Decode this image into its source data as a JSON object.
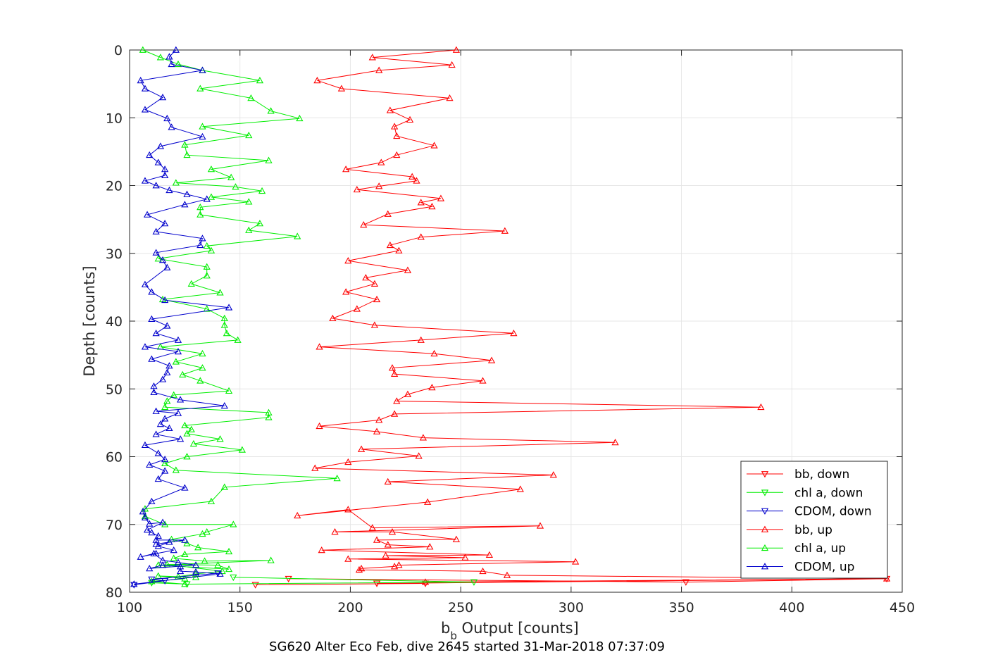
{
  "chart_data": {
    "type": "line",
    "xlabel_main": "b",
    "xlabel_sub": "b",
    "xlabel_rest": " Output [counts]",
    "ylabel": "Depth [counts]",
    "caption": "SG620 Alter Eco Feb, dive 2645 started 31-Mar-2018 07:37:09",
    "xlim": [
      100,
      450
    ],
    "ylim": [
      0,
      80
    ],
    "y_reversed": true,
    "grid": true,
    "legend_position": "bottom-right",
    "xticks": [
      "100",
      "150",
      "200",
      "250",
      "300",
      "350",
      "400",
      "450"
    ],
    "yticks": [
      "0",
      "10",
      "20",
      "30",
      "40",
      "50",
      "60",
      "70",
      "80"
    ],
    "series": [
      {
        "name": "bb, down",
        "color": "#ff0000",
        "marker": "triangle-down",
        "x": [
          172,
          352,
          443,
          212,
          234,
          157
        ],
        "y": [
          78,
          78.5,
          78,
          78.7,
          78.7,
          78.9
        ]
      },
      {
        "name": "chl a, down",
        "color": "#00ee00",
        "marker": "triangle-down",
        "x": [
          147,
          256,
          126,
          110
        ],
        "y": [
          77.8,
          78.5,
          78.8,
          78.6
        ]
      },
      {
        "name": "CDOM, down",
        "color": "#0000cc",
        "marker": "triangle-down",
        "x": [
          140,
          110,
          116,
          102
        ],
        "y": [
          77.2,
          78.1,
          78.3,
          78.9
        ]
      },
      {
        "name": "bb, up",
        "color": "#ff0000",
        "marker": "triangle-up",
        "x": [
          248,
          210,
          246,
          213,
          185,
          196,
          245,
          218,
          227,
          220,
          221,
          238,
          221,
          214,
          198,
          228,
          230,
          213,
          203,
          241,
          232,
          237,
          217,
          206,
          270,
          232,
          218,
          222,
          199,
          226,
          207,
          211,
          198,
          212,
          203,
          192,
          211,
          274,
          232,
          186,
          238,
          264,
          219,
          220,
          260,
          237,
          226,
          221,
          386,
          220,
          213,
          186,
          212,
          233,
          320,
          205,
          231,
          199,
          184,
          292,
          217,
          277,
          235,
          176,
          199,
          210,
          286,
          193,
          219,
          248,
          212,
          217,
          236,
          187,
          263,
          216,
          252,
          199,
          302,
          222,
          220,
          205,
          204,
          260,
          271,
          443,
          234
        ],
        "y": [
          0,
          1.1,
          2.2,
          3,
          4.5,
          5.7,
          7.1,
          8.9,
          10.3,
          11.3,
          12.7,
          14.1,
          15.5,
          16.6,
          17.6,
          18.7,
          19.3,
          20.1,
          20.6,
          21.9,
          22.5,
          23.1,
          24.2,
          25.8,
          26.7,
          27.6,
          28.8,
          29.6,
          31.1,
          32.5,
          33.6,
          34.5,
          35.7,
          36.8,
          38.2,
          39.6,
          40.6,
          41.8,
          42.8,
          43.8,
          44.8,
          45.8,
          46.9,
          47.8,
          48.8,
          49.8,
          50.8,
          51.8,
          52.7,
          53.7,
          54.6,
          55.5,
          56.3,
          57.2,
          57.9,
          58.9,
          59.9,
          60.8,
          61.7,
          62.7,
          63.7,
          64.8,
          66.7,
          68.7,
          67.8,
          70.5,
          70.2,
          71.1,
          71.1,
          72.2,
          72.3,
          73.0,
          73.3,
          73.8,
          74.5,
          74.6,
          74.9,
          75.1,
          75.5,
          76.0,
          76.2,
          76.5,
          76.7,
          76.9,
          77.5,
          78.0,
          78.5
        ]
      },
      {
        "name": "chl a, up",
        "color": "#00ee00",
        "marker": "triangle-up",
        "x": [
          106,
          114,
          122,
          133,
          159,
          132,
          155,
          164,
          177,
          133,
          154,
          125,
          126,
          163,
          137,
          146,
          121,
          148,
          160,
          137,
          154,
          132,
          132,
          159,
          154,
          176,
          135,
          137,
          113,
          135,
          135,
          128,
          141,
          115,
          135,
          143,
          143,
          144,
          149,
          114,
          133,
          121,
          133,
          124,
          132,
          145,
          120,
          117,
          116,
          163,
          163,
          125,
          128,
          126,
          141,
          129,
          151,
          126,
          116,
          121,
          194,
          143,
          137,
          107,
          107,
          116,
          147,
          135,
          133,
          119,
          126,
          131,
          145,
          125,
          120,
          134,
          164,
          113,
          145,
          140,
          117,
          142,
          130,
          122,
          130,
          113,
          125,
          110,
          125
        ],
        "y": [
          0,
          1.1,
          2.1,
          3,
          4.5,
          5.7,
          7.1,
          9.0,
          10.1,
          11.3,
          12.6,
          14.0,
          15.5,
          16.3,
          17.6,
          18.8,
          19.6,
          20.2,
          20.8,
          21.7,
          22.4,
          23.2,
          24.3,
          25.6,
          26.6,
          27.5,
          28.9,
          29.6,
          30.8,
          32.0,
          33.3,
          34.5,
          35.8,
          36.8,
          38.2,
          39.6,
          40.6,
          41.8,
          42.8,
          43.8,
          44.8,
          46.0,
          46.9,
          47.9,
          48.8,
          50.3,
          50.9,
          51.8,
          52.7,
          53.5,
          54.2,
          55.4,
          56.0,
          56.6,
          57.4,
          58.1,
          59.0,
          60.0,
          61.0,
          62.0,
          63.2,
          64.5,
          66.6,
          67.7,
          68.8,
          70.0,
          70.0,
          71.1,
          71.4,
          72.2,
          72.8,
          73.4,
          74.0,
          74.4,
          75.0,
          75.4,
          75.3,
          76.0,
          76.6,
          76.0,
          75.9,
          76.9,
          77.3,
          77.7,
          77.8,
          77.6,
          78.0,
          78.4,
          78.8
        ]
      },
      {
        "name": "CDOM, up",
        "color": "#0000cc",
        "marker": "triangle-up",
        "x": [
          121,
          118,
          119,
          133,
          105,
          107,
          115,
          107,
          117,
          119,
          133,
          114,
          109,
          113,
          116,
          116,
          107,
          112,
          118,
          126,
          135,
          125,
          108,
          116,
          112,
          133,
          132,
          112,
          115,
          117,
          107,
          110,
          116,
          145,
          110,
          117,
          112,
          122,
          107,
          122,
          110,
          118,
          117,
          115,
          111,
          111,
          123,
          143,
          112,
          122,
          116,
          114,
          118,
          112,
          123,
          107,
          113,
          116,
          109,
          116,
          113,
          125,
          110,
          106,
          107,
          109,
          115,
          108,
          110,
          113,
          112,
          125,
          112,
          118,
          113,
          120,
          112,
          105,
          111,
          115,
          122,
          130,
          109,
          115,
          123,
          123,
          130,
          141,
          102
        ],
        "y": [
          0,
          1.0,
          2.1,
          3,
          4.5,
          5.7,
          7.0,
          8.8,
          10.1,
          11.4,
          12.8,
          14.2,
          15.5,
          16.6,
          17.6,
          18.5,
          19.3,
          20.0,
          20.7,
          21.3,
          22.0,
          22.8,
          24.3,
          25.6,
          26.8,
          27.8,
          28.8,
          29.9,
          31.0,
          32.1,
          34.6,
          35.7,
          36.9,
          38.0,
          39.7,
          40.7,
          41.8,
          42.8,
          43.8,
          44.5,
          45.6,
          46.6,
          47.6,
          48.6,
          49.6,
          50.5,
          51.6,
          52.5,
          53.3,
          53.6,
          54.4,
          55.2,
          55.8,
          56.7,
          57.4,
          58.3,
          59.5,
          60.4,
          61.2,
          62.1,
          63.3,
          64.6,
          66.6,
          68.1,
          69.0,
          69.9,
          69.7,
          70.8,
          71.2,
          71.7,
          72.3,
          72.3,
          72.9,
          72.6,
          73.2,
          73.8,
          74.3,
          74.8,
          74.3,
          75.3,
          75.6,
          76.0,
          76.5,
          76.0,
          76.2,
          76.9,
          77.0,
          77.3,
          78.8
        ]
      }
    ]
  }
}
